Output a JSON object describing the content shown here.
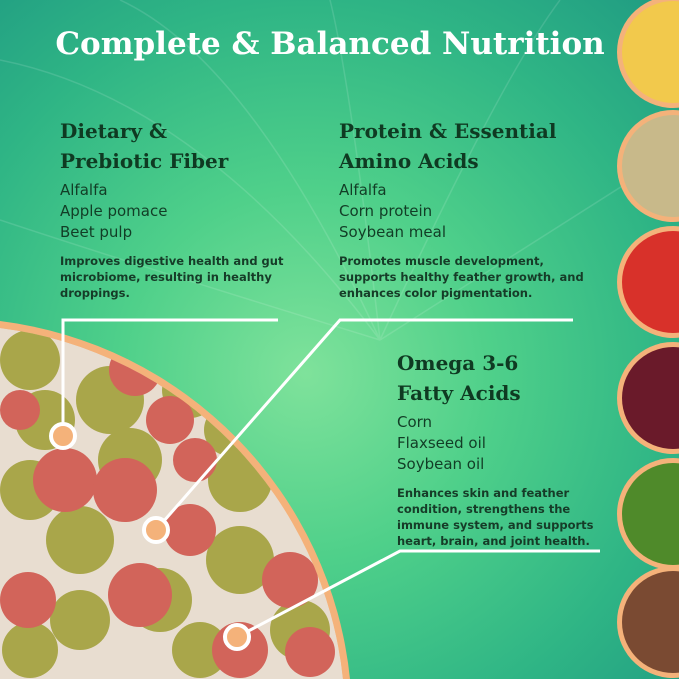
{
  "title": "Complete & Balanced Nutrition",
  "sections": [
    {
      "heading_1": "Dietary &",
      "heading_2": "Prebiotic Fiber",
      "ingredients": [
        "Alfalfa",
        "Apple pomace",
        "Beet pulp"
      ],
      "description": "Improves digestive health and gut microbiome, resulting in healthy droppings."
    },
    {
      "heading_1": "Protein & Essential",
      "heading_2": "Amino Acids",
      "ingredients": [
        "Alfalfa",
        "Corn protein",
        "Soybean meal"
      ],
      "description": "Promotes muscle development, supports healthy feather growth, and enhances color pigmentation."
    },
    {
      "heading_1": "Omega 3-6",
      "heading_2": "Fatty Acids",
      "ingredients": [
        "Corn",
        "Flaxseed oil",
        "Soybean oil"
      ],
      "description": "Enhances skin and feather condition, strengthens the immune system, and supports heart, brain, and joint health."
    }
  ],
  "ingredient_images": [
    "cornmeal",
    "oats",
    "apple",
    "beet-pulp",
    "alfalfa",
    "flaxseed"
  ],
  "colors": {
    "accent": "#f4b27a",
    "title": "#ffffff",
    "heading": "#0f3a22"
  }
}
